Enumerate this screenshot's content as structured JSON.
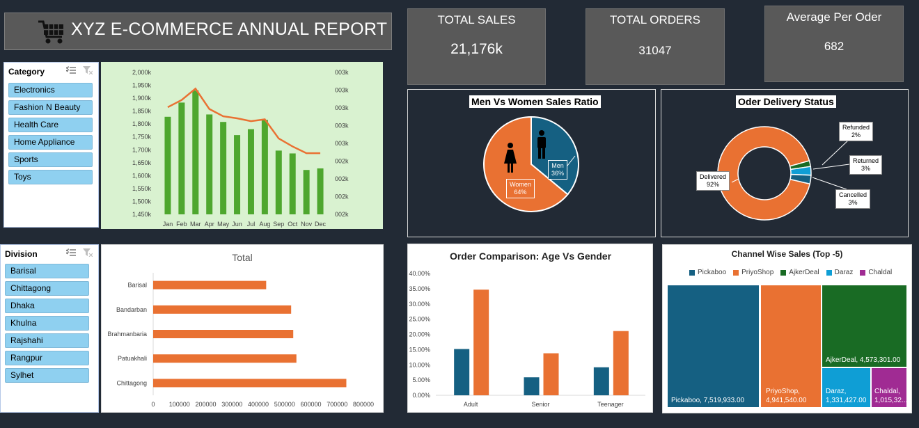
{
  "header": {
    "title": "XYZ E-COMMERCE ANNUAL REPORT",
    "icon": "shopping-cart-icon"
  },
  "kpis": [
    {
      "label": "TOTAL SALES",
      "value": "21,176k"
    },
    {
      "label": "TOTAL ORDERS",
      "value": "31047"
    },
    {
      "label": "Average Per Oder",
      "value": "682"
    }
  ],
  "category_slicer": {
    "title": "Category",
    "items": [
      "Electronics",
      "Fashion N Beauty",
      "Health Care",
      "Home Appliance",
      "Sports",
      "Toys"
    ]
  },
  "division_slicer": {
    "title": "Division",
    "items": [
      "Barisal",
      "Chittagong",
      "Dhaka",
      "Khulna",
      "Rajshahi",
      "Rangpur",
      "Sylhet"
    ]
  },
  "colors": {
    "green_bar": "#4ea72e",
    "orange": "#e97132",
    "blue": "#156082",
    "light_blue": "#0f9ed5",
    "dark_green": "#196b24",
    "purple": "#a02b93",
    "panel": "#595959",
    "background": "#222a35"
  },
  "chart_data": [
    {
      "id": "monthly",
      "type": "bar",
      "categories": [
        "Jan",
        "Feb",
        "Mar",
        "Apr",
        "May",
        "Jun",
        "Jul",
        "Aug",
        "Sep",
        "Oct",
        "Nov",
        "Dec"
      ],
      "series": [
        {
          "values": [
            1828,
            1883,
            1930,
            1837,
            1808,
            1757,
            1780,
            1816,
            1697,
            1686,
            1622,
            1628
          ]
        },
        {
          "values": [
            1865,
            1893,
            1937,
            1858,
            1830,
            1822,
            1811,
            1818,
            1744,
            1713,
            1687,
            1687
          ]
        }
      ],
      "yticks": [
        "2,000k",
        "1,950k",
        "1,900k",
        "1,850k",
        "1,800k",
        "1,750k",
        "1,700k",
        "1,650k",
        "1,600k",
        "1,550k",
        "1,500k",
        "1,450k"
      ],
      "y2ticks": [
        "003k",
        "003k",
        "003k",
        "003k",
        "003k",
        "002k",
        "002k",
        "002k",
        "002k"
      ],
      "ylim": [
        1450,
        2000
      ],
      "grid": false
    },
    {
      "id": "gender",
      "type": "pie",
      "title": "Men Vs Women Sales Ratio",
      "labels": [
        "Men",
        "Women"
      ],
      "values": [
        36,
        64
      ],
      "value_labels": [
        "36%",
        "64%"
      ]
    },
    {
      "id": "delivery",
      "type": "pie",
      "title": "Oder Delivery Status",
      "labels": [
        "Delivered",
        "Refunded",
        "Returned",
        "Cancelled"
      ],
      "values": [
        92,
        2,
        3,
        3
      ],
      "value_labels": [
        "92%",
        "2%",
        "3%",
        "3%"
      ]
    },
    {
      "id": "division",
      "type": "bar",
      "orientation": "horizontal",
      "title": "Total",
      "categories": [
        "Barisal",
        "Bandarban",
        "Brahmanbaria",
        "Patuakhali",
        "Chittagong"
      ],
      "values": [
        430000,
        525000,
        533000,
        545000,
        735000
      ],
      "xticks": [
        "0",
        "100000",
        "200000",
        "300000",
        "400000",
        "500000",
        "600000",
        "700000",
        "800000"
      ],
      "xlim": [
        0,
        800000
      ]
    },
    {
      "id": "age",
      "type": "bar",
      "title": "Order Comparison: Age Vs Gender",
      "categories": [
        "Adult",
        "Senior",
        "Teenager"
      ],
      "series": [
        {
          "values": [
            15.2,
            5.9,
            9.2
          ]
        },
        {
          "values": [
            34.7,
            13.8,
            21.1
          ]
        }
      ],
      "yticks": [
        "40.00%",
        "35.00%",
        "30.00%",
        "25.00%",
        "20.00%",
        "15.00%",
        "10.00%",
        "5.00%",
        "0.00%"
      ],
      "ylim": [
        0,
        40
      ]
    },
    {
      "id": "channel",
      "type": "treemap",
      "title": "Channel Wise Sales (Top -5)",
      "legend": [
        "Pickaboo",
        "PriyoShop",
        "AjkerDeal",
        "Daraz",
        "Chaldal"
      ],
      "values": [
        7519933,
        4941540,
        4573301,
        1331427,
        1015320
      ],
      "value_labels": [
        "Pickaboo, 7,519,933.00",
        "PriyoShop, 4,941,540.00",
        "AjkerDeal, 4,573,301.00",
        "Daraz, 1,331,427.00",
        "Chaldal, 1,015,32..."
      ]
    }
  ]
}
